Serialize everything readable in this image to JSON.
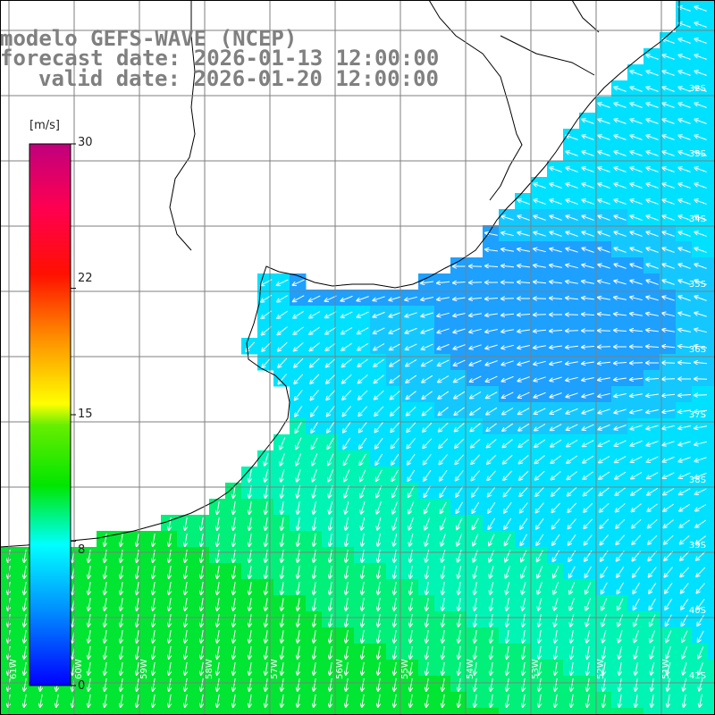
{
  "title": {
    "line1": "modelo GEFS-WAVE (NCEP)",
    "line2": "forecast date: 2026-01-13 12:00:00",
    "line3": "valid date: 2026-01-20 12:00:00"
  },
  "colorbar": {
    "unit": "[m/s]",
    "ticks": [
      "30",
      "22",
      "15",
      "8",
      "0"
    ],
    "tick_values": [
      30,
      22,
      15,
      8,
      0
    ],
    "stops": [
      "#0000ff",
      "#00c8ff",
      "#00ff64",
      "#00dc00",
      "#c8f000",
      "#ffff00",
      "#ff9600",
      "#ff0000",
      "#ff0064",
      "#c8007d"
    ]
  },
  "colors": {
    "land": "#ffffff",
    "coast": "#000000",
    "grid": "#7f7f7f",
    "arrow": "#ffffff",
    "calm_blue": "#1e96ff",
    "cyan": "#00dcff",
    "green": "#00e650"
  },
  "lat_labels": [
    "32S",
    "33S",
    "34S",
    "35S",
    "36S",
    "37S",
    "38S",
    "39S",
    "40S",
    "41S"
  ],
  "lon_labels": [
    "61W",
    "60W",
    "59W",
    "58W",
    "57W",
    "56W",
    "55W",
    "54W",
    "53W",
    "52W",
    "51W"
  ],
  "wind_direction": "from north-east"
}
